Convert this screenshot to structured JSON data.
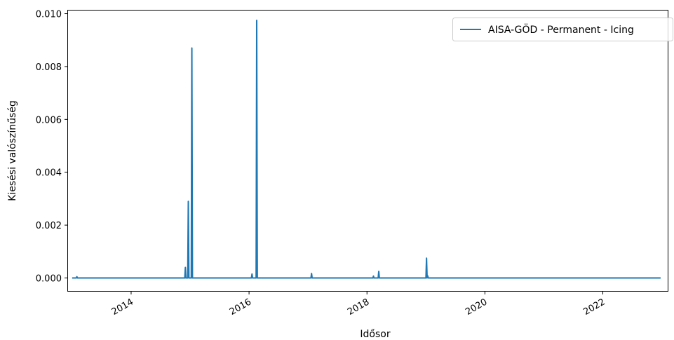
{
  "chart_data": {
    "type": "line",
    "title": "",
    "xlabel": "Idősor",
    "ylabel": "Kiesési valószínűség",
    "xlim": [
      2012.93,
      2023.1
    ],
    "ylim": [
      -0.00049,
      0.01012
    ],
    "x_ticks": [
      2014,
      2016,
      2018,
      2020,
      2022
    ],
    "x_tick_labels": [
      "2014",
      "2016",
      "2018",
      "2020",
      "2022"
    ],
    "y_ticks": [
      0.0,
      0.002,
      0.004,
      0.006,
      0.008,
      0.01
    ],
    "y_tick_labels": [
      "0.000",
      "0.002",
      "0.004",
      "0.006",
      "0.008",
      "0.010"
    ],
    "grid": false,
    "legend_position": "top-right",
    "series": [
      {
        "name": "AISA-GÖD - Permanent - Icing",
        "color": "#1f77b4",
        "x": [
          2013.0,
          2013.07,
          2013.08,
          2013.09,
          2013.1,
          2014.91,
          2014.92,
          2014.93,
          2014.96,
          2014.97,
          2014.98,
          2015.02,
          2015.03,
          2015.04,
          2016.04,
          2016.05,
          2016.06,
          2016.12,
          2016.13,
          2016.14,
          2017.05,
          2017.06,
          2017.07,
          2018.1,
          2018.11,
          2018.12,
          2018.19,
          2018.2,
          2018.21,
          2019.0,
          2019.01,
          2019.02,
          2019.03,
          2019.04,
          2022.98
        ],
        "y": [
          0.0,
          0.0,
          5e-05,
          0.0,
          0.0,
          0.0,
          0.0004,
          0.0,
          0.0,
          0.0029,
          0.0,
          0.0,
          0.0087,
          0.0,
          0.0,
          0.00015,
          0.0,
          0.0,
          0.00975,
          0.0,
          0.0,
          0.00017,
          0.0,
          0.0,
          7e-05,
          0.0,
          0.0,
          0.00025,
          0.0,
          0.0,
          0.00075,
          0.0,
          8e-05,
          0.0,
          0.0
        ]
      }
    ]
  }
}
